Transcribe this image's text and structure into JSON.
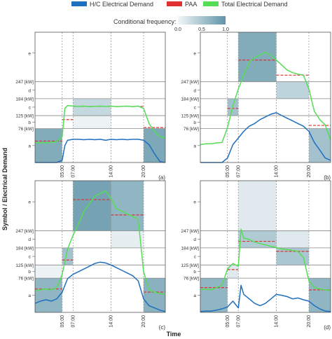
{
  "legend": {
    "items": [
      {
        "label": "H/C Electrical Demand",
        "color": "#1f6fc0"
      },
      {
        "label": "PAA",
        "color": "#e03030"
      },
      {
        "label": "Total Electrical Demand",
        "color": "#55dd55"
      }
    ]
  },
  "colorbar": {
    "title": "Conditional frequency:",
    "ticks": [
      "0.0",
      "0.5",
      "1.0"
    ],
    "color_low": "#f2f6f8",
    "color_high": "#5f94a8"
  },
  "y_axis_title": "Symbol / Electrical Demand",
  "x_axis_title": "Time",
  "chart_data": [
    {
      "type": "line",
      "panel_label": "(a)",
      "x_ticks": [
        "05:00",
        "07:00",
        "14:00",
        "20:00"
      ],
      "symbol_ticks": [
        "a",
        "b",
        "c",
        "d",
        "e"
      ],
      "kw_ticks": [
        "76 [kW]",
        "125 [kW]",
        "184 [kW]",
        "247 [kW]"
      ],
      "segments": [
        {
          "start": 0,
          "end": 5,
          "symbol": "a",
          "frequency": 0.85
        },
        {
          "start": 7,
          "end": 14,
          "symbol": "c",
          "frequency": 0.35
        },
        {
          "start": 7,
          "end": 14,
          "symbol": "b",
          "frequency": 0.05
        },
        {
          "start": 20,
          "end": 24,
          "symbol": "a",
          "frequency": 0.9
        }
      ],
      "series": [
        {
          "name": "H/C Electrical Demand",
          "x": [
            0,
            1,
            2,
            3,
            4,
            5,
            5.5,
            6,
            7,
            8,
            9,
            10,
            11,
            12,
            13,
            14,
            15,
            16,
            17,
            18,
            19,
            20,
            21,
            22,
            23,
            24
          ],
          "y": [
            0,
            0,
            0,
            0,
            0,
            5,
            38,
            50,
            52,
            52,
            51,
            52,
            51,
            52,
            50,
            52,
            51,
            52,
            51,
            52,
            52,
            50,
            40,
            20,
            2,
            0
          ]
        },
        {
          "name": "PAA",
          "steps": [
            {
              "start": 0,
              "end": 5,
              "y": 48
            },
            {
              "start": 5,
              "end": 7,
              "y": 110
            },
            {
              "start": 7,
              "end": 14,
              "y": 157
            },
            {
              "start": 14,
              "end": 20,
              "y": 157
            },
            {
              "start": 20,
              "end": 24,
              "y": 80
            }
          ]
        },
        {
          "name": "Total Electrical Demand",
          "x": [
            0,
            1,
            2,
            3,
            4,
            5,
            5.5,
            6,
            7,
            8,
            9,
            10,
            11,
            12,
            13,
            14,
            15,
            16,
            17,
            18,
            19,
            20,
            21,
            22,
            23,
            24
          ],
          "y": [
            45,
            44,
            44,
            45,
            47,
            58,
            150,
            160,
            158,
            157,
            158,
            156,
            157,
            158,
            157,
            158,
            156,
            157,
            158,
            156,
            158,
            150,
            95,
            70,
            58,
            55
          ]
        }
      ]
    },
    {
      "type": "line",
      "panel_label": "(b)",
      "x_ticks": [
        "05:00",
        "07:00",
        "14:00",
        "20:00"
      ],
      "symbol_ticks": [
        "a",
        "b",
        "c",
        "d",
        "e"
      ],
      "kw_ticks": [
        "76 [kW]",
        "125 [kW]",
        "184 [kW]",
        "247 [kW]"
      ],
      "segments": [
        {
          "start": 5,
          "end": 7,
          "symbol": "c",
          "frequency": 0.6
        },
        {
          "start": 7,
          "end": 14,
          "symbol": "e",
          "frequency": 0.85
        },
        {
          "start": 14,
          "end": 20,
          "symbol": "d",
          "frequency": 0.4
        },
        {
          "start": 20,
          "end": 24,
          "symbol": "a",
          "frequency": 0.6
        }
      ],
      "series": [
        {
          "name": "H/C Electrical Demand",
          "x": [
            0,
            1,
            2,
            3,
            4,
            5,
            6,
            7,
            8,
            9,
            10,
            11,
            12,
            13,
            14,
            15,
            16,
            17,
            18,
            19,
            20,
            21,
            22,
            23,
            24
          ],
          "y": [
            0,
            0,
            0,
            0,
            0,
            10,
            40,
            55,
            70,
            85,
            95,
            110,
            120,
            130,
            135,
            125,
            115,
            105,
            95,
            85,
            70,
            45,
            28,
            10,
            5
          ]
        },
        {
          "name": "PAA",
          "steps": [
            {
              "start": 5,
              "end": 7,
              "y": 150
            },
            {
              "start": 7,
              "end": 14,
              "y": 290
            },
            {
              "start": 14,
              "end": 20,
              "y": 260
            },
            {
              "start": 20,
              "end": 24,
              "y": 88
            }
          ]
        },
        {
          "name": "Total Electrical Demand",
          "x": [
            0,
            1,
            2,
            3,
            4,
            5,
            6,
            7,
            8,
            9,
            10,
            11,
            12,
            13,
            14,
            15,
            16,
            17,
            18,
            19,
            20,
            21,
            22,
            23,
            24
          ],
          "y": [
            40,
            42,
            42,
            44,
            45,
            80,
            160,
            220,
            260,
            285,
            295,
            300,
            305,
            300,
            290,
            280,
            270,
            265,
            262,
            260,
            220,
            140,
            110,
            90,
            50
          ]
        }
      ]
    },
    {
      "type": "line",
      "panel_label": "(c)",
      "x_ticks": [
        "05:00",
        "07:00",
        "14:00",
        "20:00"
      ],
      "symbol_ticks": [
        "a",
        "b",
        "c",
        "d",
        "e"
      ],
      "kw_ticks": [
        "76 [kW]",
        "125 [kW]",
        "184 [kW]",
        "247 [kW]"
      ],
      "segments": [
        {
          "start": 0,
          "end": 5,
          "symbol": "a",
          "frequency": 0.75
        },
        {
          "start": 0,
          "end": 5,
          "symbol": "b",
          "frequency": 0.05
        },
        {
          "start": 5,
          "end": 7,
          "symbol": "c",
          "frequency": 0.6
        },
        {
          "start": 7,
          "end": 14,
          "symbol": "e",
          "frequency": 0.95
        },
        {
          "start": 14,
          "end": 20,
          "symbol": "e",
          "frequency": 0.75
        },
        {
          "start": 14,
          "end": 20,
          "symbol": "d",
          "frequency": 0.1
        },
        {
          "start": 20,
          "end": 24,
          "symbol": "a",
          "frequency": 0.8
        }
      ],
      "series": [
        {
          "name": "H/C Electrical Demand",
          "x": [
            0,
            1,
            2,
            3,
            4,
            5,
            6,
            7,
            8,
            9,
            10,
            11,
            12,
            13,
            14,
            15,
            16,
            17,
            18,
            19,
            20,
            21,
            22,
            23,
            24
          ],
          "y": [
            20,
            25,
            28,
            25,
            30,
            45,
            75,
            90,
            100,
            110,
            120,
            130,
            135,
            132,
            125,
            115,
            105,
            95,
            85,
            70,
            30,
            15,
            10,
            5,
            2
          ]
        },
        {
          "name": "PAA",
          "steps": [
            {
              "start": 0,
              "end": 5,
              "y": 52
            },
            {
              "start": 5,
              "end": 7,
              "y": 142
            },
            {
              "start": 7,
              "end": 14,
              "y": 308
            },
            {
              "start": 14,
              "end": 20,
              "y": 278
            },
            {
              "start": 20,
              "end": 24,
              "y": 45
            }
          ]
        },
        {
          "name": "Total Electrical Demand",
          "x": [
            0,
            1,
            2,
            3,
            4,
            5,
            6,
            7,
            8,
            9,
            10,
            11,
            12,
            13,
            14,
            15,
            16,
            17,
            18,
            19,
            20,
            21,
            22,
            23,
            24
          ],
          "y": [
            48,
            50,
            52,
            50,
            55,
            90,
            180,
            230,
            260,
            285,
            300,
            315,
            320,
            325,
            310,
            290,
            285,
            280,
            275,
            270,
            100,
            50,
            45,
            42,
            40
          ]
        }
      ]
    },
    {
      "type": "line",
      "panel_label": "(d)",
      "x_ticks": [
        "05:00",
        "07:00",
        "14:00",
        "20:00"
      ],
      "symbol_ticks": [
        "a",
        "b",
        "c",
        "d",
        "e"
      ],
      "kw_ticks": [
        "76 [kW]",
        "125 [kW]",
        "184 [kW]",
        "247 [kW]"
      ],
      "segments": [
        {
          "start": 0,
          "end": 5,
          "symbol": "a",
          "frequency": 0.75
        },
        {
          "start": 5,
          "end": 7,
          "symbol": "b",
          "frequency": 0.15
        },
        {
          "start": 7,
          "end": 14,
          "symbol": "d",
          "frequency": 0.5
        },
        {
          "start": 7,
          "end": 14,
          "symbol": "e",
          "frequency": 0.15
        },
        {
          "start": 14,
          "end": 20,
          "symbol": "c",
          "frequency": 0.55
        },
        {
          "start": 14,
          "end": 20,
          "symbol": "d",
          "frequency": 0.15
        },
        {
          "start": 20,
          "end": 24,
          "symbol": "a",
          "frequency": 0.75
        }
      ],
      "series": [
        {
          "name": "H/C Electrical Demand",
          "x": [
            0,
            1,
            2,
            3,
            4,
            5,
            6,
            7,
            7.5,
            8,
            9,
            10,
            11,
            12,
            13,
            14,
            15,
            16,
            17,
            18,
            19,
            20,
            21,
            22,
            23,
            24
          ],
          "y": [
            2,
            3,
            3,
            5,
            8,
            12,
            25,
            10,
            60,
            40,
            30,
            20,
            15,
            20,
            30,
            40,
            38,
            35,
            30,
            32,
            28,
            25,
            15,
            8,
            3,
            2
          ]
        },
        {
          "name": "PAA",
          "steps": [
            {
              "start": 0,
              "end": 5,
              "y": 55
            },
            {
              "start": 5,
              "end": 7,
              "y": 108
            },
            {
              "start": 7,
              "end": 14,
              "y": 208
            },
            {
              "start": 14,
              "end": 20,
              "y": 172
            },
            {
              "start": 20,
              "end": 24,
              "y": 50
            }
          ]
        },
        {
          "name": "Total Electrical Demand",
          "x": [
            0,
            1,
            2,
            3,
            4,
            5,
            6,
            7,
            7.5,
            8,
            9,
            10,
            11,
            12,
            13,
            14,
            15,
            16,
            17,
            18,
            19,
            20,
            21,
            22,
            23,
            24
          ],
          "y": [
            50,
            52,
            50,
            55,
            60,
            110,
            130,
            120,
            250,
            220,
            215,
            205,
            200,
            195,
            190,
            185,
            180,
            178,
            175,
            172,
            150,
            70,
            55,
            52,
            50,
            48
          ]
        }
      ]
    }
  ]
}
